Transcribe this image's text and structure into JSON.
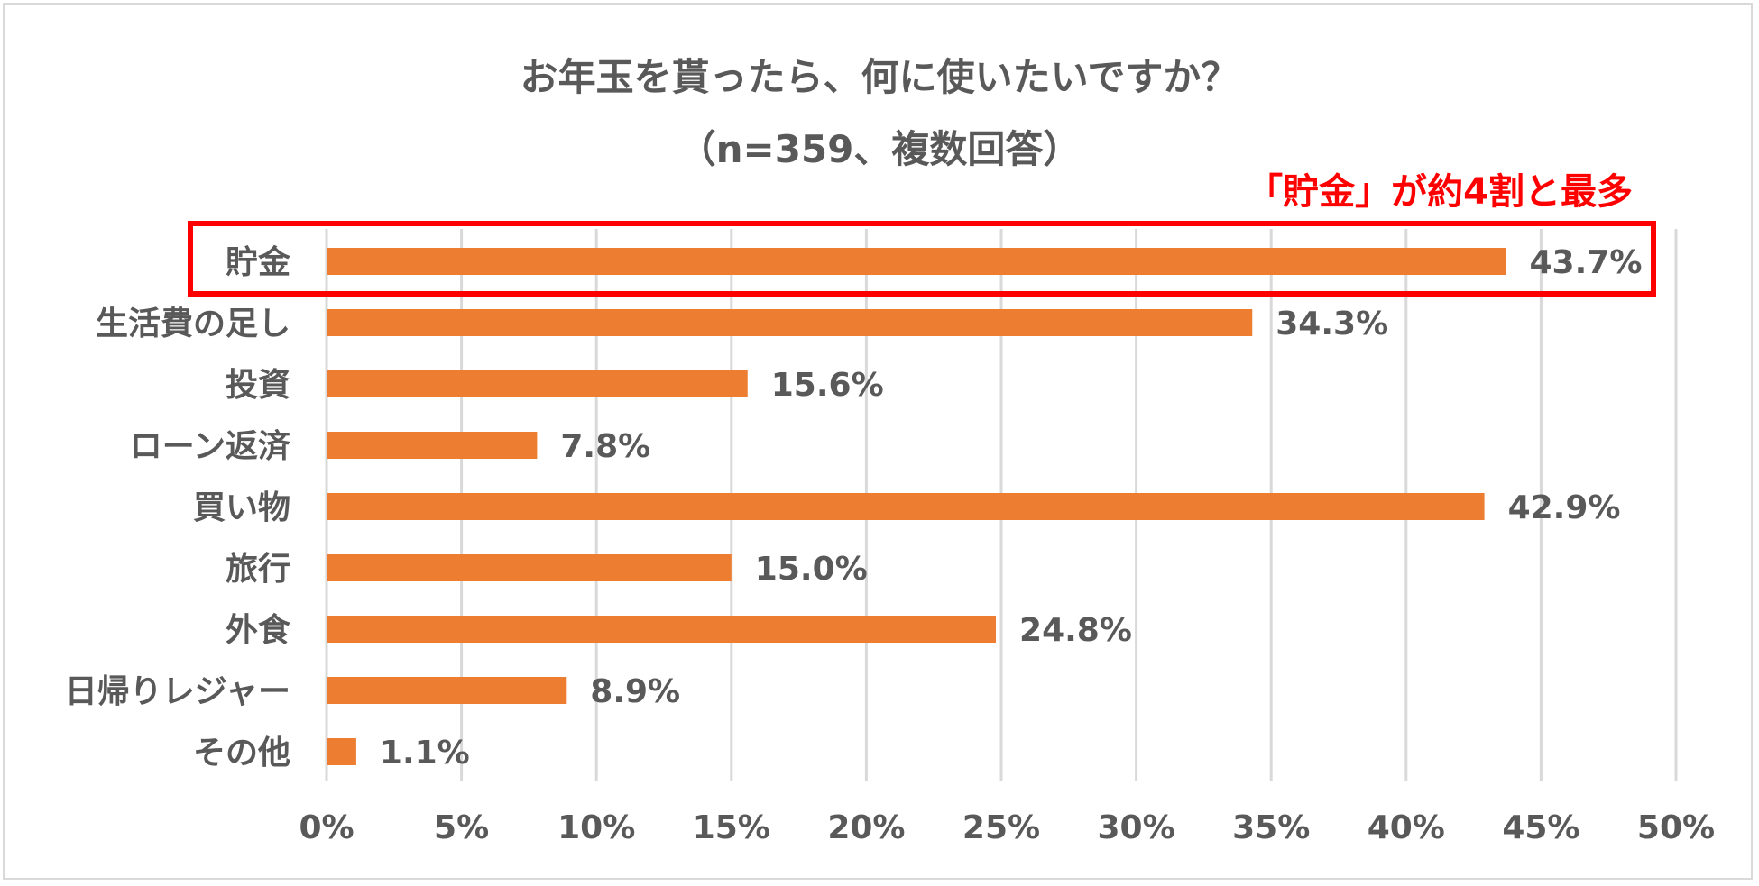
{
  "chart_data": {
    "type": "bar",
    "orientation": "horizontal",
    "title": "お年玉を貰ったら、何に使いたいですか？",
    "subtitle": "（n=359、複数回答）",
    "annotation": "「貯金」が約4割と最多",
    "categories": [
      "貯金",
      "生活費の足し",
      "投資",
      "ローン返済",
      "買い物",
      "旅行",
      "外食",
      "日帰りレジャー",
      "その他"
    ],
    "values": [
      43.7,
      34.3,
      15.6,
      7.8,
      42.9,
      15.0,
      24.8,
      8.9,
      1.1
    ],
    "value_labels": [
      "43.7%",
      "34.3%",
      "15.6%",
      "7.8%",
      "42.9%",
      "15.0%",
      "24.8%",
      "8.9%",
      "1.1%"
    ],
    "xlim": [
      0,
      50
    ],
    "xticks": [
      0,
      5,
      10,
      15,
      20,
      25,
      30,
      35,
      40,
      45,
      50
    ],
    "xtick_labels": [
      "0%",
      "5%",
      "10%",
      "15%",
      "20%",
      "25%",
      "30%",
      "35%",
      "40%",
      "45%",
      "50%"
    ],
    "highlighted_category": "貯金",
    "grid": "vertical",
    "bar_color": "#ed7d31",
    "grid_color": "#d9d9d9",
    "highlight_color": "#ff0000",
    "text_color": "#595959"
  }
}
